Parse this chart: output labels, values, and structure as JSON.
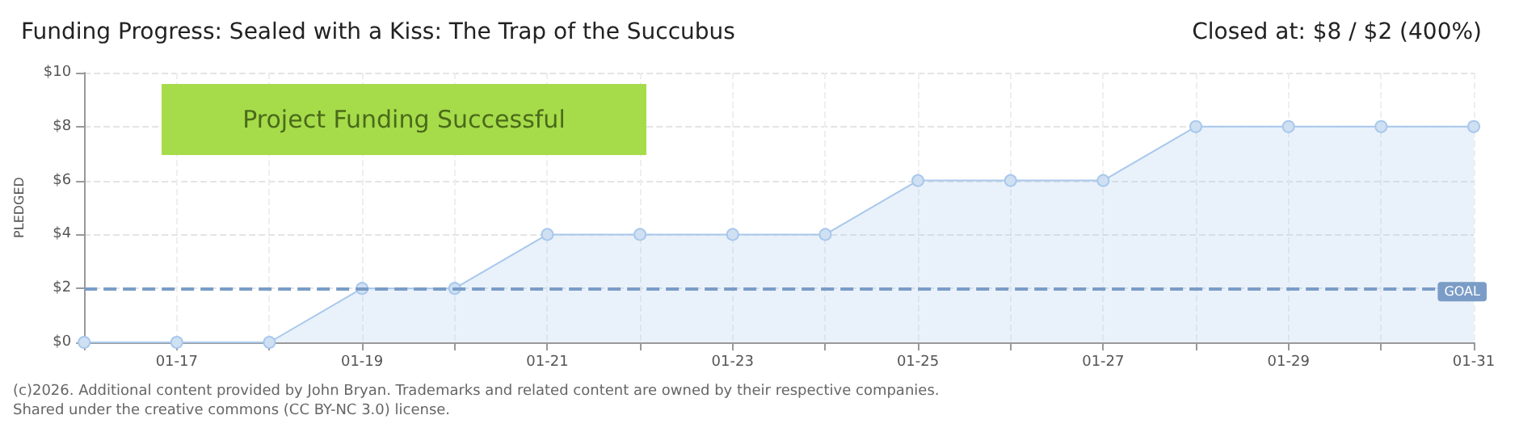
{
  "chart_data": {
    "type": "area",
    "title": "Funding Progress: Sealed with a Kiss: The Trap of the Succubus",
    "subtitle": "Closed at: $8 / $2 (400%)",
    "ylabel": "PLEDGED",
    "categories": [
      null,
      "01-17",
      null,
      "01-19",
      null,
      "01-21",
      null,
      "01-23",
      null,
      "01-25",
      null,
      "01-27",
      null,
      "01-29",
      null,
      "01-31"
    ],
    "series": [
      {
        "color": "#a8c8ec",
        "values": [
          0,
          0,
          0,
          2,
          2,
          4,
          4,
          4,
          4,
          6,
          6,
          6,
          8,
          8,
          8,
          8
        ]
      }
    ],
    "ylim": [
      0,
      10
    ],
    "yticks": [
      {
        "value": 0,
        "label": "$0"
      },
      {
        "value": 2,
        "label": "$2"
      },
      {
        "value": 4,
        "label": "$4"
      },
      {
        "value": 6,
        "label": "$6"
      },
      {
        "value": 8,
        "label": "$8"
      },
      {
        "value": 10,
        "label": "$10"
      }
    ],
    "ref_lines": [
      {
        "axis": "y",
        "value": 2,
        "label": "GOAL",
        "color": "#7a9cc6",
        "line_style": "dashed"
      }
    ],
    "annotations": [
      "Project Funding Successful",
      "(c)2026. Additional content provided by John Bryan. Trademarks and related content are owned by their respective companies.",
      "Shared under the creative commons (CC BY-NC 3.0) license."
    ],
    "grid": true,
    "marker": "circle"
  }
}
